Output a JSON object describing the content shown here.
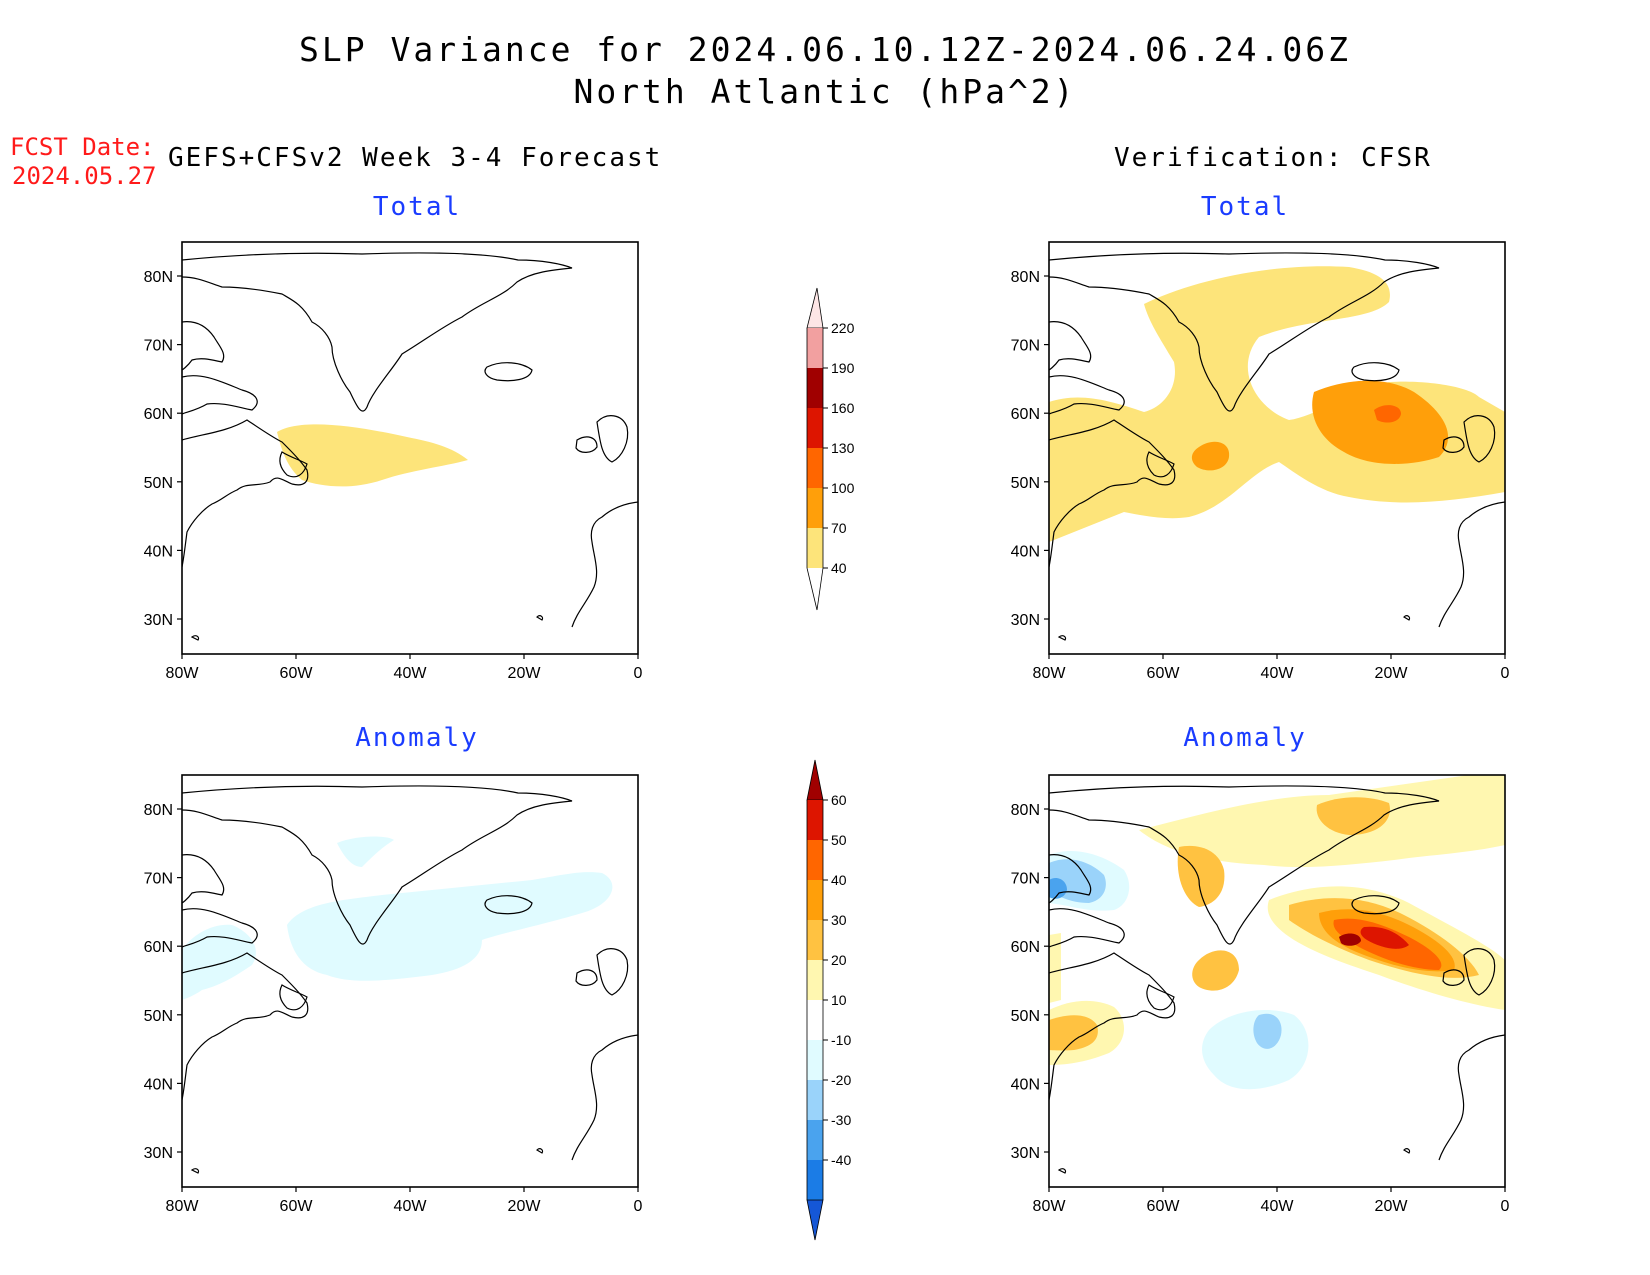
{
  "title": {
    "line1": "SLP Variance for 2024.06.10.12Z-2024.06.24.06Z",
    "line2": "North Atlantic (hPa^2)"
  },
  "fcst_date": {
    "label": "FCST Date:",
    "value": "2024.05.27"
  },
  "columns": {
    "left": "GEFS+CFSv2 Week 3-4 Forecast",
    "right": "Verification: CFSR"
  },
  "panel_titles": {
    "forecast_total": "Total",
    "verification_total": "Total",
    "forecast_anomaly": "Anomaly",
    "verification_anomaly": "Anomaly"
  },
  "map": {
    "lat_labels": [
      "80N",
      "70N",
      "60N",
      "50N",
      "40N",
      "30N"
    ],
    "lon_labels": [
      "80W",
      "60W",
      "40W",
      "20W",
      "0"
    ]
  },
  "total_colorbar": {
    "levels": [
      "220",
      "190",
      "160",
      "130",
      "100",
      "70",
      "40"
    ],
    "colors": [
      "#fde6e6",
      "#f2a0a0",
      "#a00000",
      "#dd1500",
      "#ff6600",
      "#ff9f0a",
      "#fde47a"
    ]
  },
  "anomaly_colorbar": {
    "levels": [
      "60",
      "50",
      "40",
      "30",
      "20",
      "10",
      "-10",
      "-20",
      "-30",
      "-40"
    ],
    "colors": [
      "#a00000",
      "#dd1500",
      "#ff6600",
      "#ff9f0a",
      "#ffc241",
      "#fff7b0",
      "#ffffff",
      "#e0fbff",
      "#9ad3fa",
      "#4aa3ee",
      "#1b7ce6",
      "#1557d6"
    ]
  },
  "chart_data": [
    {
      "type": "heatmap",
      "title": "Total",
      "subtitle": "GEFS+CFSv2 Week 3-4 Forecast",
      "units": "hPa^2",
      "regions": [
        {
          "range": "40-70",
          "area": "Labrador Sea / Newfoundland to 30W, 48N-56N"
        }
      ]
    },
    {
      "type": "heatmap",
      "title": "Total",
      "subtitle": "Verification: CFSR",
      "units": "hPa^2",
      "regions": [
        {
          "range": "40-70",
          "area": "broad band 45N-77N across basin"
        },
        {
          "range": "70-100",
          "area": "near 52N 50W"
        },
        {
          "range": "70-100",
          "area": "55N-65N, 30W-10W"
        },
        {
          "range": "100-130",
          "area": "near 60N 22W"
        }
      ]
    },
    {
      "type": "heatmap",
      "title": "Anomaly",
      "subtitle": "GEFS+CFSv2 Week 3-4 Forecast",
      "units": "hPa^2",
      "regions": [
        {
          "range": "-20 to -10",
          "area": "50N-70N, 80W-10W"
        }
      ]
    },
    {
      "type": "heatmap",
      "title": "Anomaly",
      "subtitle": "Verification: CFSR",
      "units": "hPa^2",
      "regions": [
        {
          "range": "10-20",
          "area": "north Greenland / Svalbard 75N-82N"
        },
        {
          "range": "20-30",
          "area": "near 78N 25W"
        },
        {
          "range": "-40 to -20",
          "area": "Baffin Island ~67N 75W"
        },
        {
          "range": "30-60",
          "area": "Iceland to Ireland, max ~60N 22W"
        },
        {
          "range": "-20 to -10",
          "area": "mid-Atlantic ~48N 40W"
        },
        {
          "range": "20-30",
          "area": "near 47N 75W"
        }
      ]
    }
  ]
}
